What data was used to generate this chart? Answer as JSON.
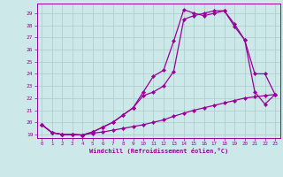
{
  "xlabel": "Windchill (Refroidissement éolien,°C)",
  "xlim": [
    -0.5,
    23.5
  ],
  "ylim": [
    18.7,
    29.8
  ],
  "yticks": [
    19,
    20,
    21,
    22,
    23,
    24,
    25,
    26,
    27,
    28,
    29
  ],
  "xticks": [
    0,
    1,
    2,
    3,
    4,
    5,
    6,
    7,
    8,
    9,
    10,
    11,
    12,
    13,
    14,
    15,
    16,
    17,
    18,
    19,
    20,
    21,
    22,
    23
  ],
  "bg_color": "#cce8e8",
  "line_color": "#990099",
  "grid_color": "#aacccc",
  "line1_x": [
    0,
    1,
    2,
    3,
    4,
    5,
    6,
    7,
    8,
    9,
    10,
    11,
    12,
    13,
    14,
    15,
    16,
    17,
    18,
    19,
    20,
    21,
    22,
    23
  ],
  "line1_y": [
    19.8,
    19.15,
    19.0,
    19.0,
    18.95,
    19.1,
    19.2,
    19.35,
    19.5,
    19.65,
    19.8,
    20.0,
    20.2,
    20.5,
    20.75,
    21.0,
    21.2,
    21.4,
    21.6,
    21.8,
    22.0,
    22.1,
    22.2,
    22.3
  ],
  "line2_x": [
    0,
    1,
    2,
    3,
    4,
    5,
    6,
    7,
    8,
    9,
    10,
    11,
    12,
    13,
    14,
    15,
    16,
    17,
    18,
    19,
    20,
    21,
    22,
    23
  ],
  "line2_y": [
    19.8,
    19.15,
    19.0,
    19.0,
    18.95,
    19.2,
    19.6,
    20.0,
    20.6,
    21.2,
    22.5,
    23.8,
    24.3,
    26.7,
    29.3,
    29.0,
    28.8,
    29.0,
    29.2,
    28.1,
    26.8,
    24.0,
    24.0,
    22.3
  ],
  "line3_x": [
    0,
    1,
    2,
    3,
    4,
    5,
    6,
    7,
    8,
    9,
    10,
    11,
    12,
    13,
    14,
    15,
    16,
    17,
    18,
    19,
    20,
    21,
    22,
    23
  ],
  "line3_y": [
    19.8,
    19.15,
    19.0,
    19.0,
    18.95,
    19.2,
    19.6,
    20.0,
    20.6,
    21.2,
    22.2,
    22.5,
    23.0,
    24.2,
    28.5,
    28.8,
    29.0,
    29.2,
    29.2,
    27.9,
    26.8,
    22.5,
    21.5,
    22.3
  ]
}
